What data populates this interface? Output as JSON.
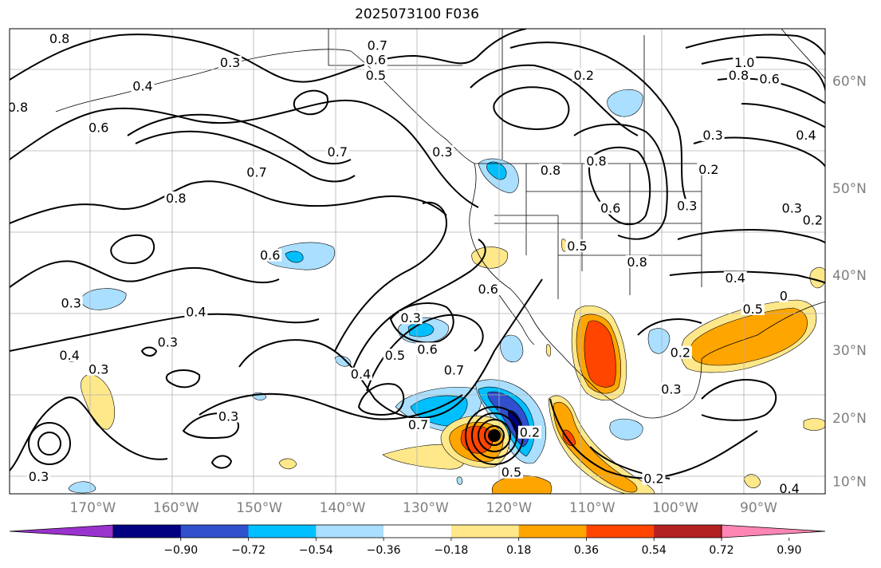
{
  "title": "2025073100 F036",
  "map": {
    "projection": "mercator",
    "lon_range": [
      -180,
      -82
    ],
    "lat_range": [
      8,
      64
    ],
    "grid": true
  },
  "lat_ticks": [
    {
      "lat": 60,
      "label": "60°N"
    },
    {
      "lat": 50,
      "label": "50°N"
    },
    {
      "lat": 40,
      "label": "40°N"
    },
    {
      "lat": 30,
      "label": "30°N"
    },
    {
      "lat": 20,
      "label": "20°N"
    },
    {
      "lat": 10,
      "label": "10°N"
    }
  ],
  "lon_ticks": [
    {
      "lon": -170,
      "label": "170°W"
    },
    {
      "lon": -160,
      "label": "160°W"
    },
    {
      "lon": -150,
      "label": "150°W"
    },
    {
      "lon": -140,
      "label": "140°W"
    },
    {
      "lon": -130,
      "label": "130°W"
    },
    {
      "lon": -120,
      "label": "120°W"
    },
    {
      "lon": -110,
      "label": "110°W"
    },
    {
      "lon": -100,
      "label": "100°W"
    },
    {
      "lon": -90,
      "label": "90°W"
    }
  ],
  "colorbar": {
    "ticks": [
      "−0.90",
      "−0.72",
      "−0.54",
      "−0.36",
      "−0.18",
      "0.18",
      "0.36",
      "0.54",
      "0.72",
      "0.90"
    ],
    "colors": [
      "#9a32cd",
      "#000080",
      "#3050cd",
      "#00bfff",
      "#aadfff",
      "#ffffff",
      "#ffe88a",
      "#ffa500",
      "#ff4500",
      "#b22222",
      "#ff86b4"
    ]
  },
  "contour_labels": [
    {
      "text": "0.8",
      "lon": -174,
      "lat": 63.3
    },
    {
      "text": "0.3",
      "lon": -153.5,
      "lat": 61.5
    },
    {
      "text": "0.4",
      "lon": -164,
      "lat": 59.6
    },
    {
      "text": "0.8",
      "lon": -179,
      "lat": 57.8
    },
    {
      "text": "0.6",
      "lon": -169.3,
      "lat": 56
    },
    {
      "text": "0.7",
      "lon": -150.3,
      "lat": 51.7
    },
    {
      "text": "0.7",
      "lon": -140.6,
      "lat": 53.7
    },
    {
      "text": "0.8",
      "lon": -160,
      "lat": 49
    },
    {
      "text": "0.6",
      "lon": -148.7,
      "lat": 42.5
    },
    {
      "text": "0.4",
      "lon": -157.6,
      "lat": 35.3
    },
    {
      "text": "0.3",
      "lon": -172.6,
      "lat": 36.5
    },
    {
      "text": "0.3",
      "lon": -161,
      "lat": 31.2
    },
    {
      "text": "0.4",
      "lon": -172.8,
      "lat": 29.3
    },
    {
      "text": "0.3",
      "lon": -169.3,
      "lat": 27.3
    },
    {
      "text": "0.3",
      "lon": -131.8,
      "lat": 34.5
    },
    {
      "text": "0.6",
      "lon": -122.5,
      "lat": 38.3
    },
    {
      "text": "0.5",
      "lon": -133.7,
      "lat": 29.3
    },
    {
      "text": "0.6",
      "lon": -129.8,
      "lat": 30.2
    },
    {
      "text": "0.4",
      "lon": -137.8,
      "lat": 26.6
    },
    {
      "text": "0.7",
      "lon": -126.6,
      "lat": 27.2
    },
    {
      "text": "0.7",
      "lon": -130.9,
      "lat": 19
    },
    {
      "text": "0.3",
      "lon": -153.7,
      "lat": 20.3
    },
    {
      "text": "0.3",
      "lon": -176.5,
      "lat": 10.8
    },
    {
      "text": "0.7",
      "lon": -135.8,
      "lat": 62.8
    },
    {
      "text": "0.6",
      "lon": -136,
      "lat": 61.7
    },
    {
      "text": "0.5",
      "lon": -136,
      "lat": 60.5
    },
    {
      "text": "0.3",
      "lon": -128,
      "lat": 53.7
    },
    {
      "text": "0.2",
      "lon": -111,
      "lat": 60.5
    },
    {
      "text": "0.8",
      "lon": -115,
      "lat": 51.9
    },
    {
      "text": "0.8",
      "lon": -109.5,
      "lat": 52.8
    },
    {
      "text": "0.6",
      "lon": -107.8,
      "lat": 47.9
    },
    {
      "text": "0.5",
      "lon": -111.8,
      "lat": 43.6
    },
    {
      "text": "0.8",
      "lon": -104.6,
      "lat": 41.7
    },
    {
      "text": "0.3",
      "lon": -98.6,
      "lat": 48.2
    },
    {
      "text": "0.2",
      "lon": -96,
      "lat": 52
    },
    {
      "text": "0.3",
      "lon": -95.5,
      "lat": 55.3
    },
    {
      "text": "1.0",
      "lon": -91.7,
      "lat": 61.5
    },
    {
      "text": "0.8",
      "lon": -92.4,
      "lat": 60.5
    },
    {
      "text": "0.6",
      "lon": -88.7,
      "lat": 60.2
    },
    {
      "text": "0.4",
      "lon": -84.3,
      "lat": 55.3
    },
    {
      "text": "0.3",
      "lon": -86,
      "lat": 47.9
    },
    {
      "text": "0.2",
      "lon": -83.5,
      "lat": 46.6
    },
    {
      "text": "0.4",
      "lon": -92.8,
      "lat": 39.7
    },
    {
      "text": "0.5",
      "lon": -90.7,
      "lat": 35.7
    },
    {
      "text": "0",
      "lon": -87,
      "lat": 37.4
    },
    {
      "text": "0.2",
      "lon": -99.4,
      "lat": 29.7
    },
    {
      "text": "0.3",
      "lon": -100.5,
      "lat": 24.4
    },
    {
      "text": "0.2",
      "lon": -117.5,
      "lat": 17.8
    },
    {
      "text": "0.5",
      "lon": -119.7,
      "lat": 11.5
    },
    {
      "text": "0.2",
      "lon": -102.6,
      "lat": 10.5
    },
    {
      "text": "0.4",
      "lon": -86.3,
      "lat": 8.9
    }
  ]
}
